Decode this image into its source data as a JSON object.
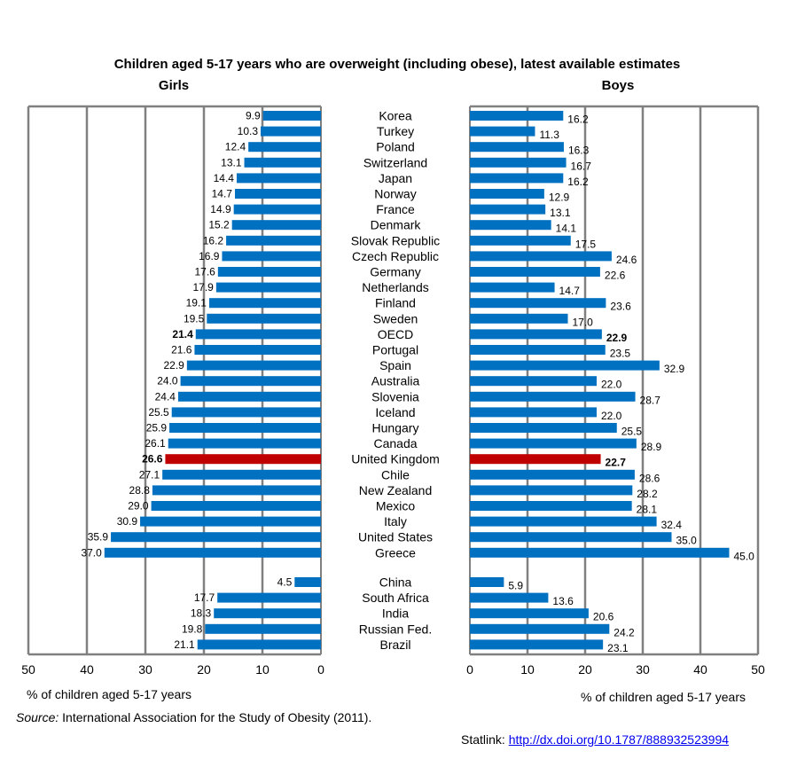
{
  "title": "Children aged 5-17 years who are overweight (including obese), latest available estimates",
  "footer": {
    "source_label": "Source:",
    "source_text": "International Association for the Study of Obesity (2011).",
    "statlink_label": "Statlink: ",
    "statlink_url": "http://dx.doi.org/10.1787/888932523994"
  },
  "colors": {
    "bar": "#0070c0",
    "highlight": "#c00000",
    "grid": "#808080"
  },
  "chart_data": [
    {
      "type": "bar",
      "title": "Girls",
      "orientation": "horizontal",
      "x_direction": "reversed",
      "xlabel": "% of children aged 5-17 years",
      "xlim": [
        0,
        50
      ],
      "xticks": [
        50,
        40,
        30,
        20,
        10,
        0
      ],
      "grid": true,
      "categories": [
        "Korea",
        "Turkey",
        "Poland",
        "Switzerland",
        "Japan",
        "Norway",
        "France",
        "Denmark",
        "Slovak Republic",
        "Czech Republic",
        "Germany",
        "Netherlands",
        "Finland",
        "Sweden",
        "OECD",
        "Portugal",
        "Spain",
        "Australia",
        "Slovenia",
        "Iceland",
        "Hungary",
        "Canada",
        "United Kingdom",
        "Chile",
        "New Zealand",
        "Mexico",
        "Italy",
        "United States",
        "Greece",
        "China",
        "South Africa",
        "India",
        "Russian Fed.",
        "Brazil"
      ],
      "value_labels": [
        "9.9",
        "10.3",
        "12.4",
        "13.1",
        "14.4",
        "14.7",
        "14.9",
        "15.2",
        "16.2",
        "16.9",
        "17.6",
        "17.9",
        "19.1",
        "19.5",
        "21.4",
        "21.6",
        "22.9",
        "24.0",
        "24.4",
        "25.5",
        "25.9",
        "26.1",
        "26.6",
        "27.1",
        "28.8",
        "29.0",
        "30.9",
        "35.9",
        "37.0",
        "4.5",
        "17.7",
        "18.3",
        "19.8",
        "21.1"
      ],
      "values": [
        9.9,
        10.3,
        12.4,
        13.1,
        14.4,
        14.7,
        14.9,
        15.2,
        16.2,
        16.9,
        17.6,
        17.9,
        19.1,
        19.5,
        21.4,
        21.6,
        22.9,
        24.0,
        24.4,
        25.5,
        25.9,
        26.1,
        26.6,
        27.1,
        28.8,
        29.0,
        30.9,
        35.9,
        37.0,
        4.5,
        17.7,
        18.3,
        19.8,
        21.1
      ],
      "highlight": "United Kingdom",
      "bold": "OECD"
    },
    {
      "type": "bar",
      "title": "Boys",
      "orientation": "horizontal",
      "xlabel": "% of children aged 5-17 years",
      "xlim": [
        0,
        50
      ],
      "xticks": [
        0,
        10,
        20,
        30,
        40,
        50
      ],
      "grid": true,
      "categories": [
        "Korea",
        "Turkey",
        "Poland",
        "Switzerland",
        "Japan",
        "Norway",
        "France",
        "Denmark",
        "Slovak Republic",
        "Czech Republic",
        "Germany",
        "Netherlands",
        "Finland",
        "Sweden",
        "OECD",
        "Portugal",
        "Spain",
        "Australia",
        "Slovenia",
        "Iceland",
        "Hungary",
        "Canada",
        "United Kingdom",
        "Chile",
        "New Zealand",
        "Mexico",
        "Italy",
        "United States",
        "Greece",
        "China",
        "South Africa",
        "India",
        "Russian Fed.",
        "Brazil"
      ],
      "value_labels": [
        "16.2",
        "11.3",
        "16.3",
        "16.7",
        "16.2",
        "12.9",
        "13.1",
        "14.1",
        "17.5",
        "24.6",
        "22.6",
        "14.7",
        "23.6",
        "17.0",
        "22.9",
        "23.5",
        "32.9",
        "22.0",
        "28.7",
        "22.0",
        "25.5",
        "28.9",
        "22.7",
        "28.6",
        "28.2",
        "28.1",
        "32.4",
        "35.0",
        "45.0",
        "5.9",
        "13.6",
        "20.6",
        "24.2",
        "23.1"
      ],
      "values": [
        16.2,
        11.3,
        16.3,
        16.7,
        16.2,
        12.9,
        13.1,
        14.1,
        17.5,
        24.6,
        22.6,
        14.7,
        23.6,
        17.0,
        22.9,
        23.5,
        32.9,
        22.0,
        28.7,
        22.0,
        25.5,
        28.9,
        22.7,
        28.6,
        28.2,
        28.1,
        32.4,
        35.0,
        45.0,
        5.9,
        13.6,
        20.6,
        24.2,
        23.1
      ],
      "highlight": "United Kingdom",
      "bold": "OECD"
    }
  ]
}
